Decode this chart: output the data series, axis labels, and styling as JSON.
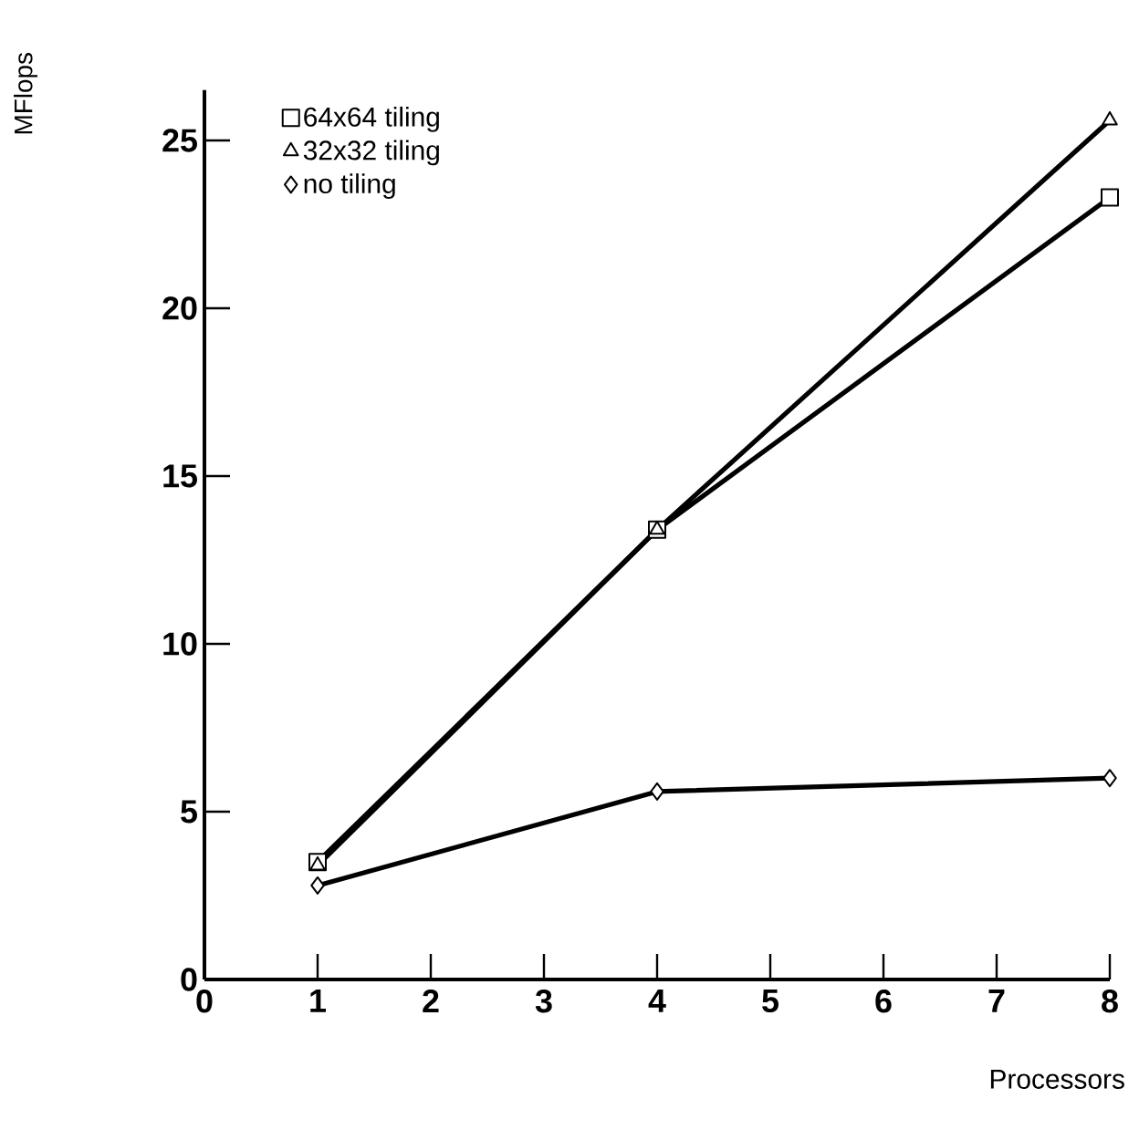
{
  "chart_data": {
    "type": "line",
    "xlabel": "Processors",
    "ylabel": "MFlops",
    "x": [
      1,
      4,
      8
    ],
    "series": [
      {
        "name": "64x64 tiling",
        "color": "#000000",
        "marker": "square",
        "values": [
          3.5,
          13.4,
          23.3
        ]
      },
      {
        "name": "32x32 tiling",
        "color": "#000000",
        "marker": "triangle",
        "values": [
          3.4,
          13.4,
          25.6
        ]
      },
      {
        "name": "no tiling",
        "color": "#000000",
        "marker": "diamond",
        "values": [
          2.8,
          5.6,
          6.0
        ]
      }
    ],
    "xlim": [
      0,
      8
    ],
    "xticks": [
      0,
      1,
      2,
      3,
      4,
      5,
      6,
      7,
      8
    ],
    "ylim": [
      0,
      26.5
    ],
    "yticks": [
      0,
      5,
      10,
      15,
      20,
      25
    ],
    "grid": false,
    "legend": "top left",
    "line_style": "solid"
  }
}
